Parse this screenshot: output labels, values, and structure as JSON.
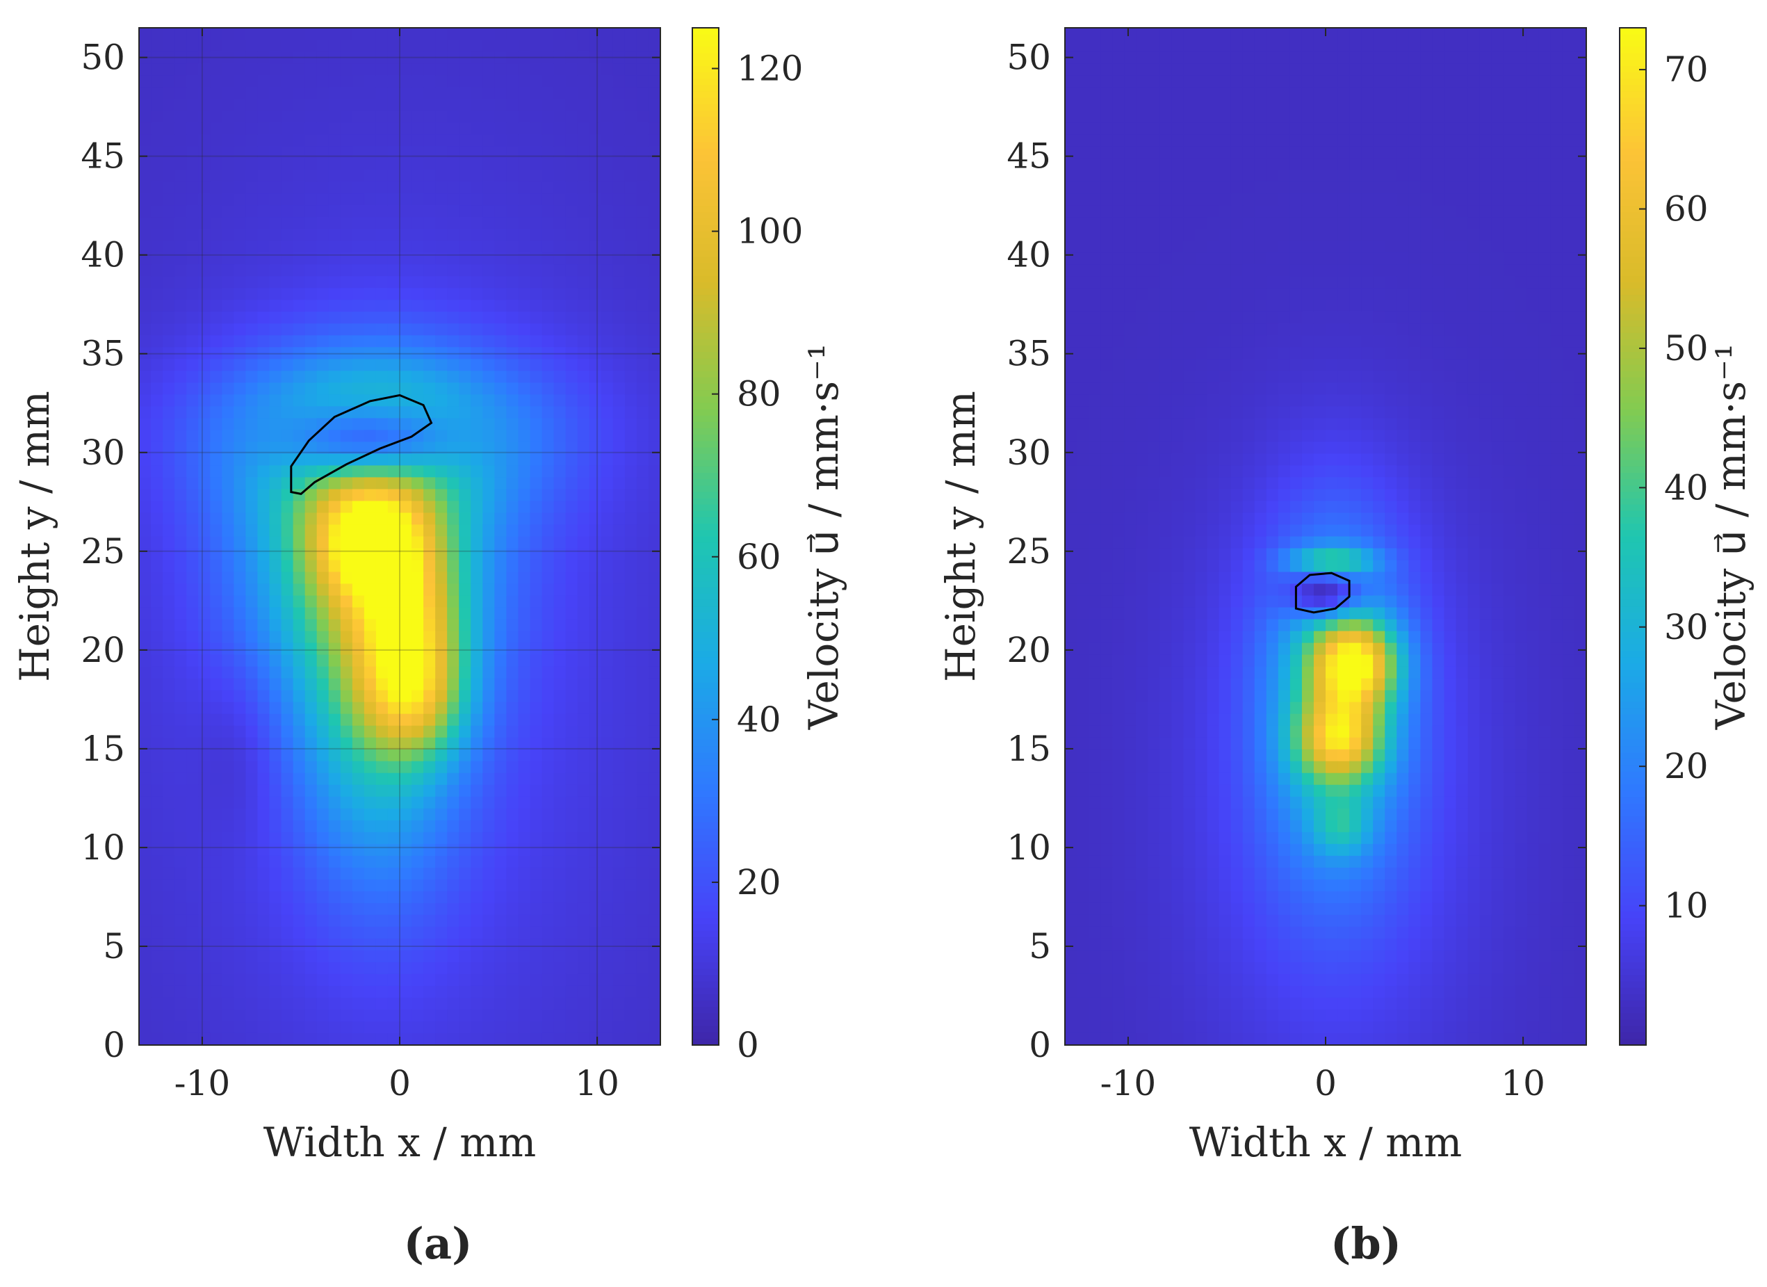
{
  "chart_data": [
    {
      "type": "heatmap",
      "panel_label": "(a)",
      "xlabel": "Width x / mm",
      "ylabel": "Height y / mm",
      "colorbar_label": "Velocity u⃗ / mm·s⁻¹",
      "xlim": [
        -13.2,
        13.2
      ],
      "ylim": [
        0,
        51.5
      ],
      "xticks": [
        -10,
        0,
        10
      ],
      "yticks": [
        0,
        5,
        10,
        15,
        20,
        25,
        30,
        35,
        40,
        45,
        50
      ],
      "clim": [
        0,
        125
      ],
      "cticks": [
        0,
        20,
        40,
        60,
        80,
        100,
        120
      ],
      "grid": true,
      "colormap": [
        "#3e26a8",
        "#4743f8",
        "#2f79ff",
        "#1baae6",
        "#1fc6b0",
        "#83cb51",
        "#d9bb2a",
        "#fcc337",
        "#f9fb15"
      ],
      "blobs": [
        {
          "x": 0,
          "y": 20,
          "sx": 9,
          "sy": 16,
          "value": 12
        },
        {
          "x": -2,
          "y": 25,
          "sx": 4.5,
          "sy": 5,
          "value": 45
        },
        {
          "x": -1,
          "y": 31,
          "sx": 6,
          "sy": 3,
          "value": 40
        },
        {
          "x": -1,
          "y": 18,
          "sx": 3,
          "sy": 7,
          "value": 45
        },
        {
          "x": -1.5,
          "y": 25.5,
          "sx": 2,
          "sy": 2,
          "value": 55
        },
        {
          "x": 0.5,
          "y": 21,
          "sx": 1.8,
          "sy": 3,
          "value": 40
        },
        {
          "x": 0.8,
          "y": 17.5,
          "sx": 1.8,
          "sy": 2.2,
          "value": 35
        },
        {
          "x": -1.5,
          "y": 30.5,
          "sx": 3,
          "sy": 1.4,
          "value": -60
        },
        {
          "x": -8,
          "y": 15,
          "sx": 1.5,
          "sy": 3,
          "value": -6
        }
      ],
      "contour": [
        [
          -5.5,
          28.0
        ],
        [
          -5.5,
          29.3
        ],
        [
          -4.6,
          30.6
        ],
        [
          -3.3,
          31.8
        ],
        [
          -1.5,
          32.6
        ],
        [
          0,
          32.9
        ],
        [
          1.2,
          32.4
        ],
        [
          1.6,
          31.5
        ],
        [
          0.6,
          30.8
        ],
        [
          -1.0,
          30.2
        ],
        [
          -2.7,
          29.4
        ],
        [
          -4.3,
          28.5
        ],
        [
          -5.0,
          27.9
        ]
      ]
    },
    {
      "type": "heatmap",
      "panel_label": "(b)",
      "xlabel": "Width x / mm",
      "ylabel": "Height y / mm",
      "colorbar_label": "Velocity u⃗ / mm·s⁻¹",
      "xlim": [
        -13.2,
        13.2
      ],
      "ylim": [
        0,
        51.5
      ],
      "xticks": [
        -10,
        0,
        10
      ],
      "yticks": [
        0,
        5,
        10,
        15,
        20,
        25,
        30,
        35,
        40,
        45,
        50
      ],
      "clim": [
        0,
        73
      ],
      "cticks": [
        10,
        20,
        30,
        40,
        50,
        60,
        70
      ],
      "grid": false,
      "colormap": [
        "#3e26a8",
        "#4743f8",
        "#2f79ff",
        "#1baae6",
        "#1fc6b0",
        "#83cb51",
        "#d9bb2a",
        "#fcc337",
        "#f9fb15"
      ],
      "blobs": [
        {
          "x": 0.5,
          "y": 13,
          "sx": 5,
          "sy": 10,
          "value": 10
        },
        {
          "x": 0.5,
          "y": 18,
          "sx": 2.5,
          "sy": 6,
          "value": 25
        },
        {
          "x": 1.5,
          "y": 19.3,
          "sx": 1.5,
          "sy": 1.5,
          "value": 45
        },
        {
          "x": 0.7,
          "y": 15.5,
          "sx": 1.5,
          "sy": 1.5,
          "value": 35
        },
        {
          "x": 0.3,
          "y": 24.5,
          "sx": 1.5,
          "sy": 0.5,
          "value": 22
        },
        {
          "x": 0.8,
          "y": 11,
          "sx": 1,
          "sy": 1,
          "value": 12
        },
        {
          "x": 0,
          "y": 22.8,
          "sx": 1.3,
          "sy": 0.9,
          "value": -25
        }
      ],
      "contour": [
        [
          -1.5,
          22.1
        ],
        [
          -1.5,
          23.2
        ],
        [
          -0.8,
          23.8
        ],
        [
          0.3,
          23.9
        ],
        [
          1.2,
          23.5
        ],
        [
          1.2,
          22.7
        ],
        [
          0.5,
          22.1
        ],
        [
          -0.6,
          21.9
        ]
      ]
    }
  ]
}
